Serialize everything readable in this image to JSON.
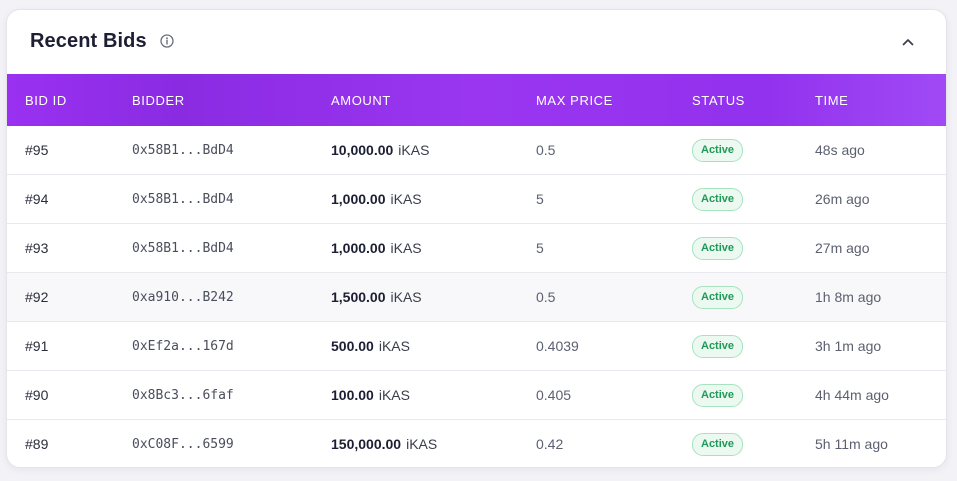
{
  "header": {
    "title": "Recent Bids"
  },
  "table": {
    "columns": [
      "BID ID",
      "BIDDER",
      "AMOUNT",
      "MAX PRICE",
      "STATUS",
      "TIME"
    ],
    "rows": [
      {
        "id": "#95",
        "bidder": "0x58B1...BdD4",
        "amount": "10,000.00",
        "unit": "iKAS",
        "max_price": "0.5",
        "status": "Active",
        "time": "48s ago"
      },
      {
        "id": "#94",
        "bidder": "0x58B1...BdD4",
        "amount": "1,000.00",
        "unit": "iKAS",
        "max_price": "5",
        "status": "Active",
        "time": "26m ago"
      },
      {
        "id": "#93",
        "bidder": "0x58B1...BdD4",
        "amount": "1,000.00",
        "unit": "iKAS",
        "max_price": "5",
        "status": "Active",
        "time": "27m ago"
      },
      {
        "id": "#92",
        "bidder": "0xa910...B242",
        "amount": "1,500.00",
        "unit": "iKAS",
        "max_price": "0.5",
        "status": "Active",
        "time": "1h 8m ago"
      },
      {
        "id": "#91",
        "bidder": "0xEf2a...167d",
        "amount": "500.00",
        "unit": "iKAS",
        "max_price": "0.4039",
        "status": "Active",
        "time": "3h 1m ago"
      },
      {
        "id": "#90",
        "bidder": "0x8Bc3...6faf",
        "amount": "100.00",
        "unit": "iKAS",
        "max_price": "0.405",
        "status": "Active",
        "time": "4h 44m ago"
      },
      {
        "id": "#89",
        "bidder": "0xC08F...6599",
        "amount": "150,000.00",
        "unit": "iKAS",
        "max_price": "0.42",
        "status": "Active",
        "time": "5h 11m ago"
      }
    ]
  },
  "icons": {
    "info": "info-icon",
    "collapse": "chevron-up-icon"
  },
  "colors": {
    "header_gradient_start": "#9a31f2",
    "header_gradient_end": "#a04af5",
    "status_active_text": "#1f9a57",
    "status_active_bg": "#ebf9f1"
  }
}
